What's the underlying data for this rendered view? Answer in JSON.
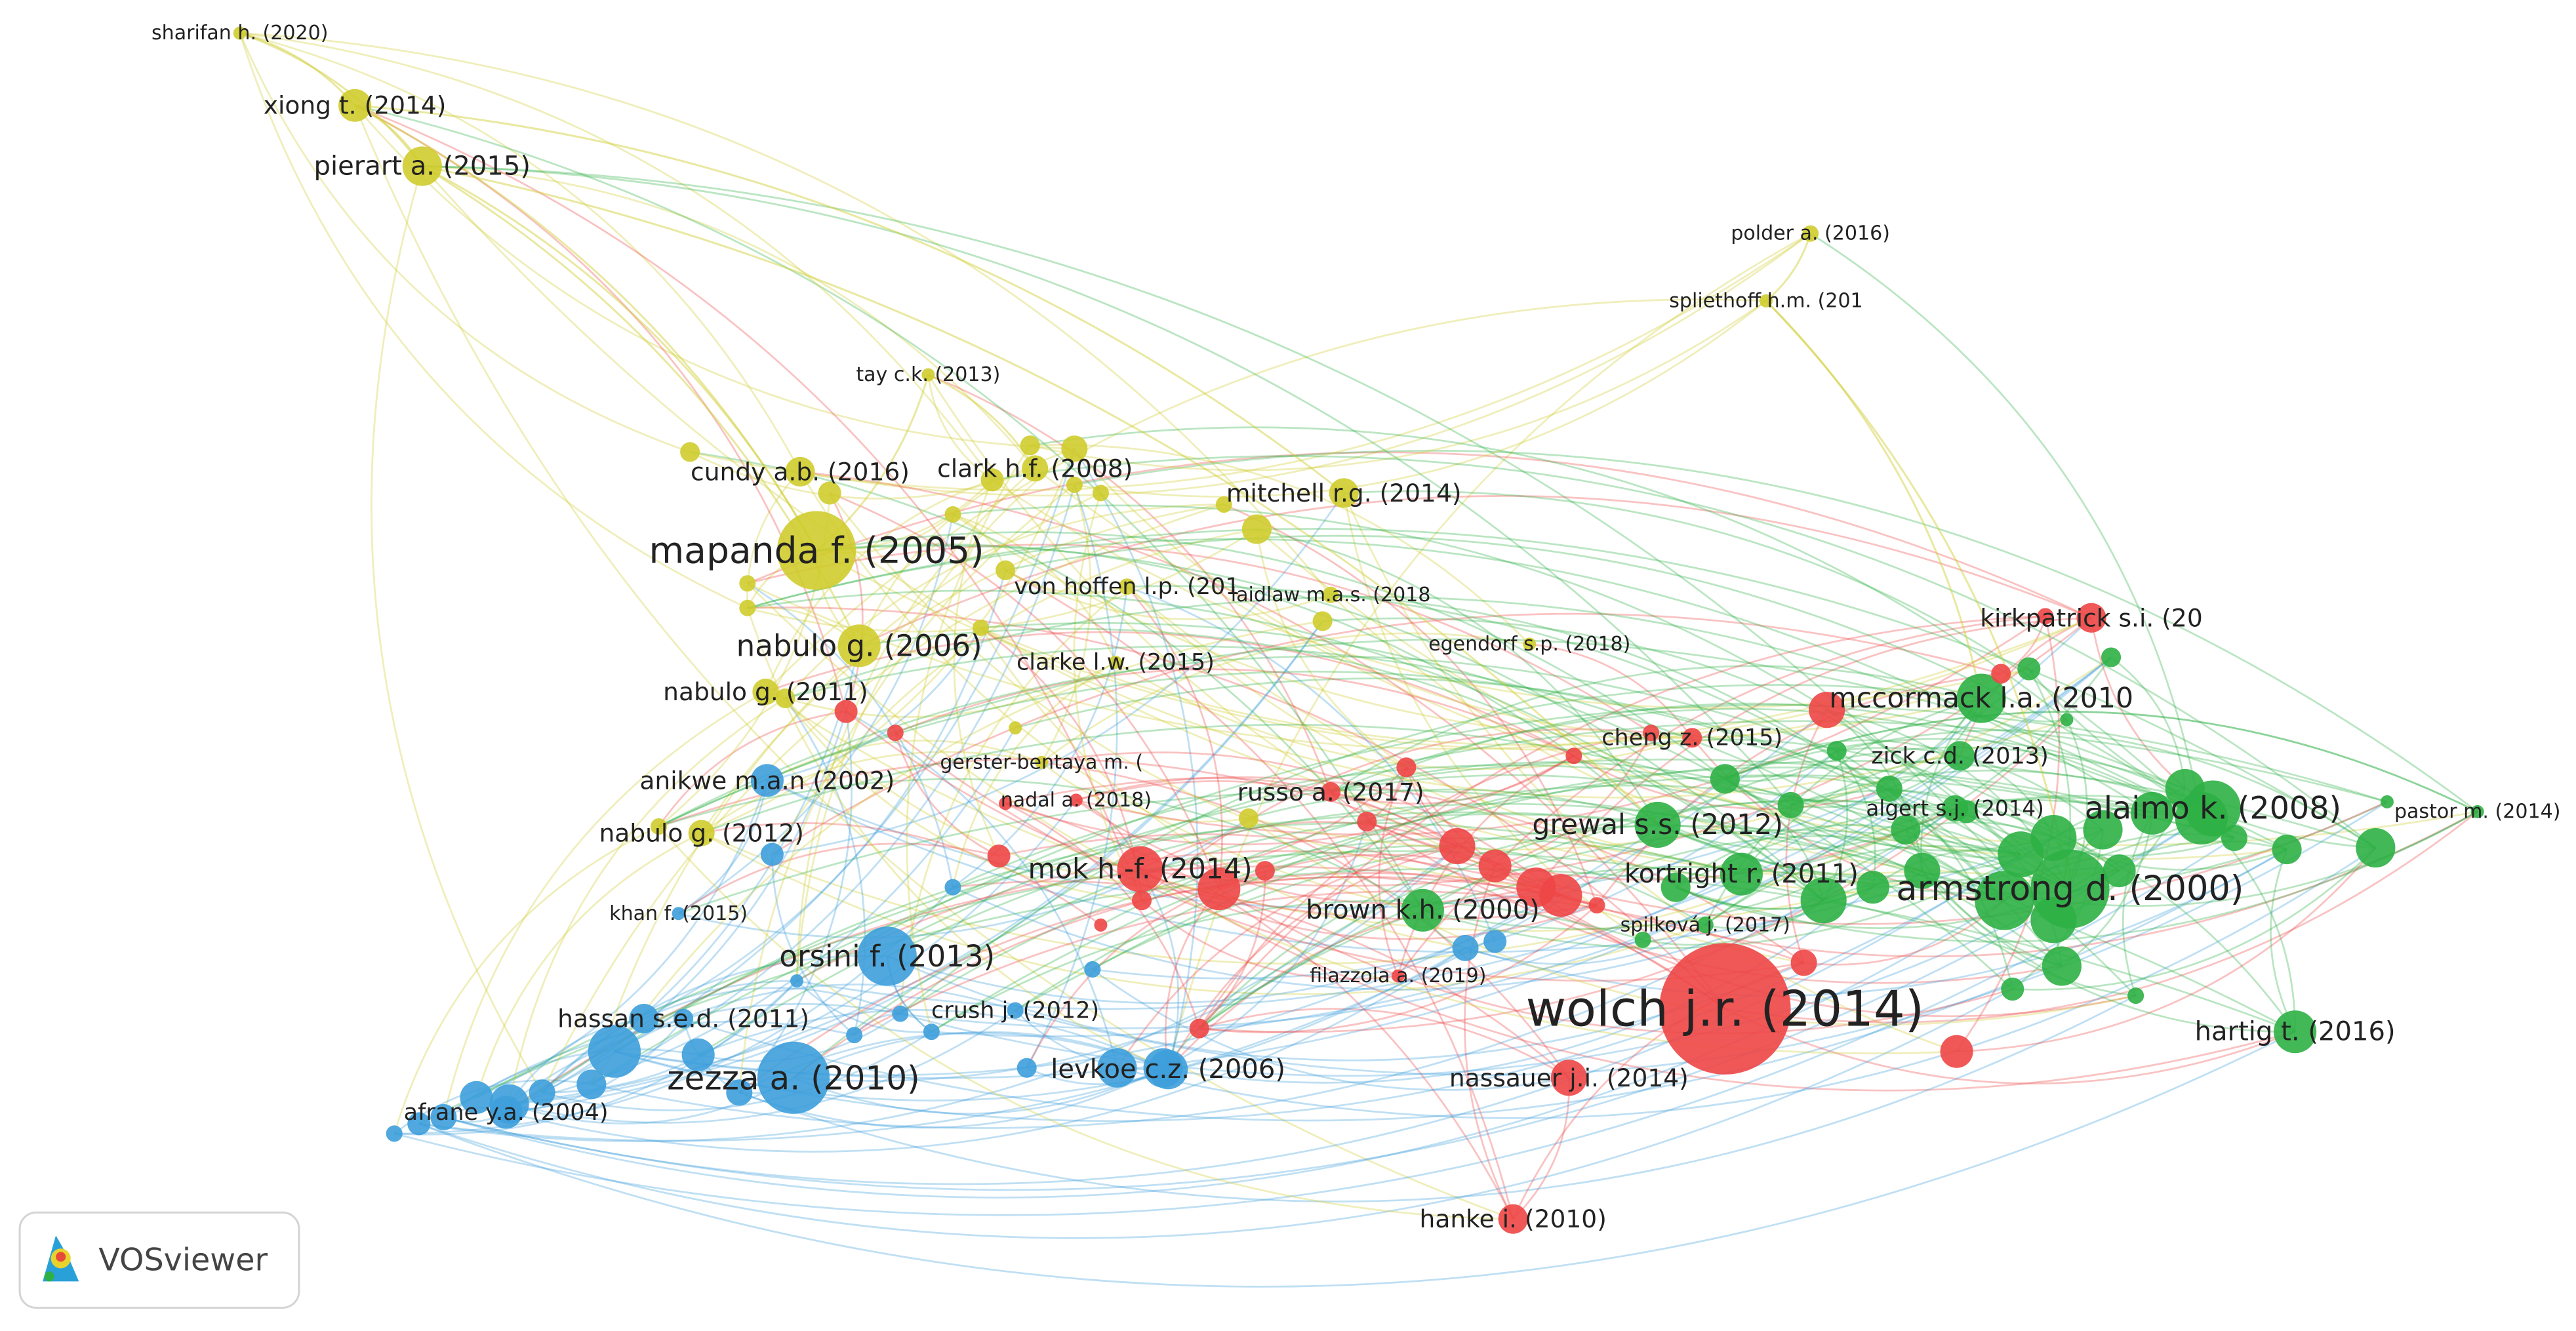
{
  "nodes": [
    {
      "label": "sharifan h. (2020)",
      "color": "#cfcc2e"
    },
    {
      "label": "xiong t. (2014)",
      "color": "#cfcc2e"
    },
    {
      "label": "pierart a. (2015)",
      "color": "#cfcc2e"
    },
    {
      "label": "polder a. (2016)",
      "color": "#cfcc2e"
    },
    {
      "label": "spliethoff h.m. (201",
      "color": "#cfcc2e"
    },
    {
      "label": "tay c.k. (2013)",
      "color": "#cfcc2e"
    },
    {
      "label": "cundy a.b. (2016)",
      "color": "#cfcc2e"
    },
    {
      "label": "clark h.f. (2008)",
      "color": "#cfcc2e"
    },
    {
      "label": "mitchell r.g. (2014)",
      "color": "#cfcc2e"
    },
    {
      "label": "mapanda f. (2005)",
      "color": "#cfcc2e"
    },
    {
      "label": "von hoffen l.p. (201",
      "color": "#cfcc2e"
    },
    {
      "label": "laidlaw m.a.s. (2018",
      "color": "#cfcc2e"
    },
    {
      "label": "nabulo g. (2006)",
      "color": "#cfcc2e"
    },
    {
      "label": "clarke l.w. (2015)",
      "color": "#cfcc2e"
    },
    {
      "label": "egendorf s.p. (2018)",
      "color": "#cfcc2e"
    },
    {
      "label": "nabulo g. (2011)",
      "color": "#cfcc2e"
    },
    {
      "label": "gerster-bentaya m. (",
      "color": "#cfcc2e"
    },
    {
      "label": "nabulo g. (2012)",
      "color": "#cfcc2e"
    },
    {
      "label": "anikwe m.a.n (2002)",
      "color": "#3d9fdc"
    },
    {
      "label": "khan f. (2015)",
      "color": "#3d9fdc"
    },
    {
      "label": "orsini f. (2013)",
      "color": "#3d9fdc"
    },
    {
      "label": "hassan s.e.d. (2011)",
      "color": "#3d9fdc"
    },
    {
      "label": "crush j. (2012)",
      "color": "#3d9fdc"
    },
    {
      "label": "zezza a. (2010)",
      "color": "#3d9fdc"
    },
    {
      "label": "levkoe c.z. (2006)",
      "color": "#3d9fdc"
    },
    {
      "label": "afrane y.a. (2004)",
      "color": "#3d9fdc"
    },
    {
      "label": "russo a. (2017)",
      "color": "#ee4646"
    },
    {
      "label": "nadal a. (2018)",
      "color": "#ee4646"
    },
    {
      "label": "mok h.-f. (2014)",
      "color": "#ee4646"
    },
    {
      "label": "filazzola a. (2019)",
      "color": "#ee4646"
    },
    {
      "label": "wolch j.r. (2014)",
      "color": "#ee4646"
    },
    {
      "label": "nassauer j.i. (2014)",
      "color": "#ee4646"
    },
    {
      "label": "hanke i. (2010)",
      "color": "#ee4646"
    },
    {
      "label": "kirkpatrick s.i. (20",
      "color": "#ee4646"
    },
    {
      "label": "cheng z. (2015)",
      "color": "#ee4646"
    },
    {
      "label": "brown k.h. (2000)",
      "color": "#2eb045"
    },
    {
      "label": "mccormack l.a. (2010",
      "color": "#2eb045"
    },
    {
      "label": "zick c.d. (2013)",
      "color": "#2eb045"
    },
    {
      "label": "algert s.j. (2014)",
      "color": "#2eb045"
    },
    {
      "label": "alaimo k. (2008)",
      "color": "#2eb045"
    },
    {
      "label": "pastor m. (2014)",
      "color": "#2eb045"
    },
    {
      "label": "grewal s.s. (2012)",
      "color": "#2eb045"
    },
    {
      "label": "kortright r. (2011)",
      "color": "#2eb045"
    },
    {
      "label": "armstrong d. (2000)",
      "color": "#2eb045"
    },
    {
      "label": "spilková j. (2017)",
      "color": "#2eb045"
    },
    {
      "label": "hartig t. (2016)",
      "color": "#2eb045"
    }
  ],
  "logo": {
    "text": "VOSviewer"
  }
}
